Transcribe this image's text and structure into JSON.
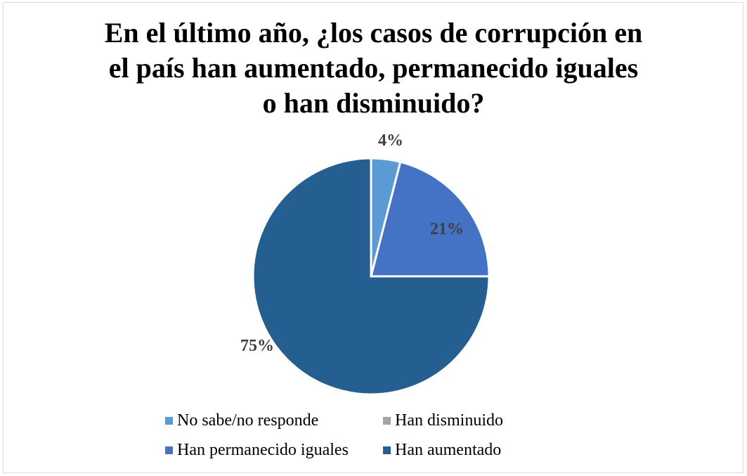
{
  "chart_data": {
    "type": "pie",
    "title_lines": [
      "En el último año, ¿los casos de corrupción en",
      "el país han aumentado, permanecido iguales",
      "o han disminuido?"
    ],
    "categories": [
      "No sabe/no responde",
      "Han permanecido iguales",
      "Han aumentado",
      "Han disminuido"
    ],
    "values": [
      4,
      21,
      75,
      0
    ],
    "labels": [
      "4%",
      "21%",
      "75%",
      ""
    ],
    "colors": [
      "#5b9bd5",
      "#4472c4",
      "#255e91",
      "#a5a5a5"
    ],
    "legend": {
      "placement": "bottom",
      "entries": [
        {
          "label": "No sabe/no responde",
          "color": "#5b9bd5"
        },
        {
          "label": "Han disminuido",
          "color": "#a5a5a5"
        },
        {
          "label": "Han permanecido iguales",
          "color": "#4472c4"
        },
        {
          "label": "Han aumentado",
          "color": "#255e91"
        }
      ]
    }
  }
}
